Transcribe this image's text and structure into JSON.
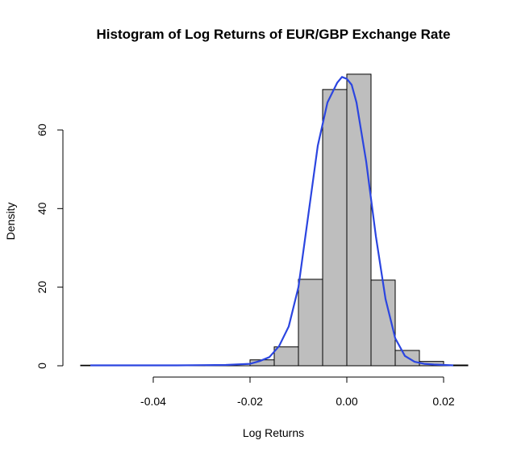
{
  "chart_data": {
    "type": "bar",
    "subtype": "histogram-with-density",
    "title": "Histogram of Log Returns of EUR/GBP Exchange Rate",
    "xlabel": "Log Returns",
    "ylabel": "Density",
    "xlim": [
      -0.055,
      0.025
    ],
    "ylim": [
      0,
      75
    ],
    "grid": false,
    "x_ticks": [
      -0.04,
      -0.02,
      0.0,
      0.02
    ],
    "x_tick_labels": [
      "-0.04",
      "-0.02",
      "0.00",
      "0.02"
    ],
    "y_ticks": [
      0,
      20,
      40,
      60
    ],
    "y_tick_labels": [
      "0",
      "20",
      "40",
      "60"
    ],
    "bins": [
      {
        "x0": -0.055,
        "x1": -0.05,
        "density": 0.15
      },
      {
        "x0": -0.05,
        "x1": -0.045,
        "density": 0.0
      },
      {
        "x0": -0.045,
        "x1": -0.04,
        "density": 0.0
      },
      {
        "x0": -0.04,
        "x1": -0.035,
        "density": 0.0
      },
      {
        "x0": -0.035,
        "x1": -0.03,
        "density": 0.0
      },
      {
        "x0": -0.03,
        "x1": -0.025,
        "density": 0.0
      },
      {
        "x0": -0.025,
        "x1": -0.02,
        "density": 0.0
      },
      {
        "x0": -0.02,
        "x1": -0.015,
        "density": 1.5
      },
      {
        "x0": -0.015,
        "x1": -0.01,
        "density": 4.8
      },
      {
        "x0": -0.01,
        "x1": -0.005,
        "density": 22.0
      },
      {
        "x0": -0.005,
        "x1": 0.0,
        "density": 70.3
      },
      {
        "x0": 0.0,
        "x1": 0.005,
        "density": 74.2
      },
      {
        "x0": 0.005,
        "x1": 0.01,
        "density": 21.8
      },
      {
        "x0": 0.01,
        "x1": 0.015,
        "density": 3.9
      },
      {
        "x0": 0.015,
        "x1": 0.02,
        "density": 1.1
      },
      {
        "x0": 0.02,
        "x1": 0.025,
        "density": 0.2
      }
    ],
    "density_curve": {
      "color": "#2b45e0",
      "x": [
        -0.053,
        -0.045,
        -0.035,
        -0.025,
        -0.02,
        -0.018,
        -0.016,
        -0.014,
        -0.012,
        -0.01,
        -0.008,
        -0.006,
        -0.004,
        -0.002,
        -0.001,
        0.0,
        0.001,
        0.002,
        0.004,
        0.006,
        0.008,
        0.01,
        0.012,
        0.014,
        0.016,
        0.018,
        0.02,
        0.022
      ],
      "y": [
        0.1,
        0.1,
        0.1,
        0.2,
        0.5,
        1.2,
        2.2,
        5.0,
        10.0,
        20.0,
        38.0,
        56.0,
        67.0,
        72.0,
        73.5,
        73.0,
        71.5,
        67.0,
        52.0,
        33.0,
        17.0,
        7.0,
        2.5,
        1.0,
        0.5,
        0.3,
        0.2,
        0.1
      ]
    },
    "bar_color": "#bebebe"
  }
}
